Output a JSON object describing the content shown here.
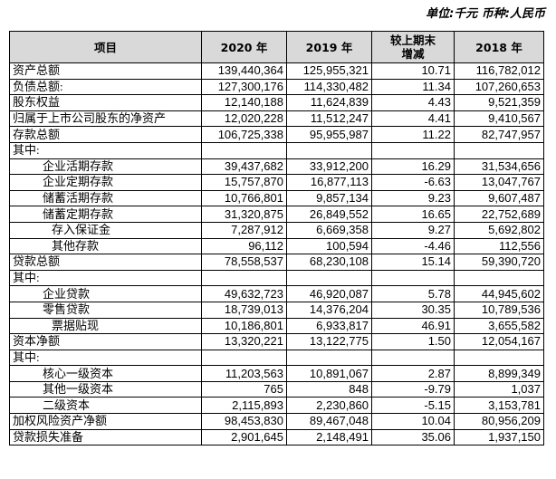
{
  "header": {
    "unit": "单位:千元 币种:人民币"
  },
  "table": {
    "columns": [
      "项目",
      "2020 年",
      "2019 年",
      "较上期末增减",
      "2018 年"
    ],
    "rows": [
      [
        "资产总额",
        "139,440,364",
        "125,955,321",
        "10.71",
        "116,782,012"
      ],
      [
        "负债总额:",
        "127,300,176",
        "114,330,482",
        "11.34",
        "107,260,653"
      ],
      [
        "股东权益",
        "12,140,188",
        "11,624,839",
        "4.43",
        "9,521,359"
      ],
      [
        "归属于上市公司股东的净资产",
        "12,020,228",
        "11,512,247",
        "4.41",
        "9,410,567"
      ],
      [
        "存款总额",
        "106,725,338",
        "95,955,987",
        "11.22",
        "82,747,957"
      ],
      [
        "其中:"
      ],
      [
        "企业活期存款",
        "39,437,682",
        "33,912,200",
        "16.29",
        "31,534,656"
      ],
      [
        "企业定期存款",
        "15,757,870",
        "16,877,113",
        "-6.63",
        "13,047,767"
      ],
      [
        "储蓄活期存款",
        "10,766,801",
        "9,857,134",
        "9.23",
        "9,607,487"
      ],
      [
        "储蓄定期存款",
        "31,320,875",
        "26,849,552",
        "16.65",
        "22,752,689"
      ],
      [
        "存入保证金",
        "7,287,912",
        "6,669,358",
        "9.27",
        "5,692,802"
      ],
      [
        "其他存款",
        "96,112",
        "100,594",
        "-4.46",
        "112,556"
      ],
      [
        "贷款总额",
        "78,558,537",
        "68,230,108",
        "15.14",
        "59,390,720"
      ],
      [
        "其中:"
      ],
      [
        "企业贷款",
        "49,632,723",
        "46,920,087",
        "5.78",
        "44,945,602"
      ],
      [
        "零售贷款",
        "18,739,013",
        "14,376,204",
        "30.35",
        "10,789,536"
      ],
      [
        "票据贴现",
        "10,186,801",
        "6,933,817",
        "46.91",
        "3,655,582"
      ],
      [
        "资本净额",
        "13,320,221",
        "13,122,775",
        "1.50",
        "12,054,167"
      ],
      [
        "其中:"
      ],
      [
        "核心一级资本",
        "11,203,563",
        "10,891,067",
        "2.87",
        "8,899,349"
      ],
      [
        "其他一级资本",
        "765",
        "848",
        "-9.79",
        "1,037"
      ],
      [
        "二级资本",
        "2,115,893",
        "2,230,860",
        "-5.15",
        "3,153,781"
      ],
      [
        "加权风险资产净额",
        "98,453,830",
        "89,467,048",
        "10.04",
        "80,956,209"
      ],
      [
        "贷款损失准备",
        "2,901,645",
        "2,148,491",
        "35.06",
        "1,937,150"
      ]
    ]
  }
}
